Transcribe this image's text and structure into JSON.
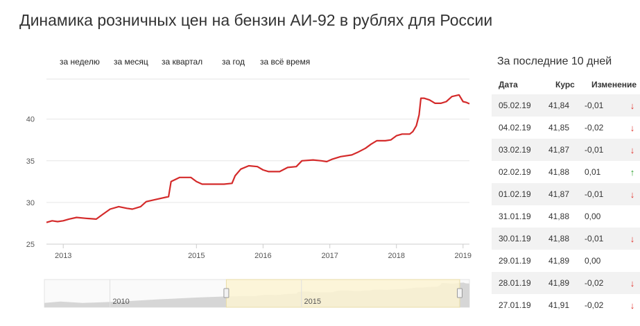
{
  "title": "Динамика розничных цен на бензин АИ-92 в рублях для России",
  "ranges": [
    {
      "label": "за неделю"
    },
    {
      "label": "за месяц"
    },
    {
      "label": "за квартал"
    },
    {
      "label": "за год"
    },
    {
      "label": "за всё время"
    }
  ],
  "colors": {
    "line": "#d42a2a",
    "grid": "#e6e6e6",
    "navigator_selection": "#fbf3d2",
    "navigator_area": "#d6d6d6",
    "arrow_down": "#e0312b",
    "arrow_up": "#2ca02c"
  },
  "chart_data": {
    "type": "line",
    "title": "",
    "xlabel": "",
    "ylabel": "",
    "y_ticks": [
      25,
      30,
      35,
      40
    ],
    "ylim": [
      25,
      44.8
    ],
    "x_ticks": [
      "2013",
      "2015",
      "2016",
      "2017",
      "2018",
      "2019"
    ],
    "xlim": [
      "2012-10-01",
      "2019-02-05"
    ],
    "grid": true,
    "legend": "none",
    "series": [
      {
        "points": [
          [
            "2012-10-01",
            27.6
          ],
          [
            "2012-11-01",
            27.8
          ],
          [
            "2012-12-01",
            27.7
          ],
          [
            "2013-01-01",
            27.8
          ],
          [
            "2013-02-01",
            28.0
          ],
          [
            "2013-03-15",
            28.2
          ],
          [
            "2013-05-01",
            28.1
          ],
          [
            "2013-07-01",
            28.0
          ],
          [
            "2013-08-01",
            28.5
          ],
          [
            "2013-09-15",
            29.2
          ],
          [
            "2013-11-01",
            29.5
          ],
          [
            "2013-12-15",
            29.3
          ],
          [
            "2014-01-15",
            29.2
          ],
          [
            "2014-03-01",
            29.5
          ],
          [
            "2014-04-01",
            30.1
          ],
          [
            "2014-06-01",
            30.4
          ],
          [
            "2014-08-01",
            30.7
          ],
          [
            "2014-08-15",
            32.5
          ],
          [
            "2014-10-01",
            33.0
          ],
          [
            "2014-12-01",
            33.0
          ],
          [
            "2015-01-01",
            32.5
          ],
          [
            "2015-02-01",
            32.2
          ],
          [
            "2015-04-01",
            32.2
          ],
          [
            "2015-06-01",
            32.2
          ],
          [
            "2015-07-15",
            32.3
          ],
          [
            "2015-08-01",
            33.2
          ],
          [
            "2015-09-01",
            34.0
          ],
          [
            "2015-10-15",
            34.4
          ],
          [
            "2015-12-01",
            34.3
          ],
          [
            "2016-01-01",
            33.9
          ],
          [
            "2016-02-01",
            33.7
          ],
          [
            "2016-04-01",
            33.7
          ],
          [
            "2016-05-15",
            34.2
          ],
          [
            "2016-07-01",
            34.3
          ],
          [
            "2016-08-01",
            35.0
          ],
          [
            "2016-10-01",
            35.1
          ],
          [
            "2016-11-15",
            35.0
          ],
          [
            "2016-12-15",
            34.9
          ],
          [
            "2017-01-15",
            35.2
          ],
          [
            "2017-03-01",
            35.5
          ],
          [
            "2017-05-01",
            35.7
          ],
          [
            "2017-06-01",
            36.0
          ],
          [
            "2017-07-15",
            36.5
          ],
          [
            "2017-08-15",
            37.0
          ],
          [
            "2017-09-15",
            37.4
          ],
          [
            "2017-11-01",
            37.4
          ],
          [
            "2017-12-01",
            37.5
          ],
          [
            "2018-01-01",
            38.0
          ],
          [
            "2018-02-01",
            38.2
          ],
          [
            "2018-03-15",
            38.2
          ],
          [
            "2018-04-01",
            38.5
          ],
          [
            "2018-04-20",
            39.2
          ],
          [
            "2018-05-05",
            40.5
          ],
          [
            "2018-05-15",
            42.5
          ],
          [
            "2018-06-01",
            42.5
          ],
          [
            "2018-07-01",
            42.3
          ],
          [
            "2018-08-01",
            41.9
          ],
          [
            "2018-09-01",
            41.9
          ],
          [
            "2018-10-01",
            42.1
          ],
          [
            "2018-11-01",
            42.7
          ],
          [
            "2018-12-10",
            42.9
          ],
          [
            "2019-01-01",
            42.1
          ],
          [
            "2019-01-20",
            42.0
          ],
          [
            "2019-02-05",
            41.84
          ]
        ]
      }
    ],
    "navigator": {
      "labels": [
        "2010",
        "2015"
      ],
      "selection": [
        "2012-10-01",
        "2019-02-05"
      ]
    }
  },
  "side_panel": {
    "title": "За последние 10 дней",
    "columns": [
      "Дата",
      "Курс",
      "Изменение"
    ],
    "rows": [
      {
        "date": "05.02.19",
        "rate": "41,84",
        "change": "-0,01",
        "dir": "down"
      },
      {
        "date": "04.02.19",
        "rate": "41,85",
        "change": "-0,02",
        "dir": "down"
      },
      {
        "date": "03.02.19",
        "rate": "41,87",
        "change": "-0,01",
        "dir": "down"
      },
      {
        "date": "02.02.19",
        "rate": "41,88",
        "change": "0,01",
        "dir": "up"
      },
      {
        "date": "01.02.19",
        "rate": "41,87",
        "change": "-0,01",
        "dir": "down"
      },
      {
        "date": "31.01.19",
        "rate": "41,88",
        "change": "0,00",
        "dir": "none"
      },
      {
        "date": "30.01.19",
        "rate": "41,88",
        "change": "-0,01",
        "dir": "down"
      },
      {
        "date": "29.01.19",
        "rate": "41,89",
        "change": "0,00",
        "dir": "none"
      },
      {
        "date": "28.01.19",
        "rate": "41,89",
        "change": "-0,02",
        "dir": "down"
      },
      {
        "date": "27.01.19",
        "rate": "41,91",
        "change": "-0,02",
        "dir": "down"
      }
    ]
  }
}
